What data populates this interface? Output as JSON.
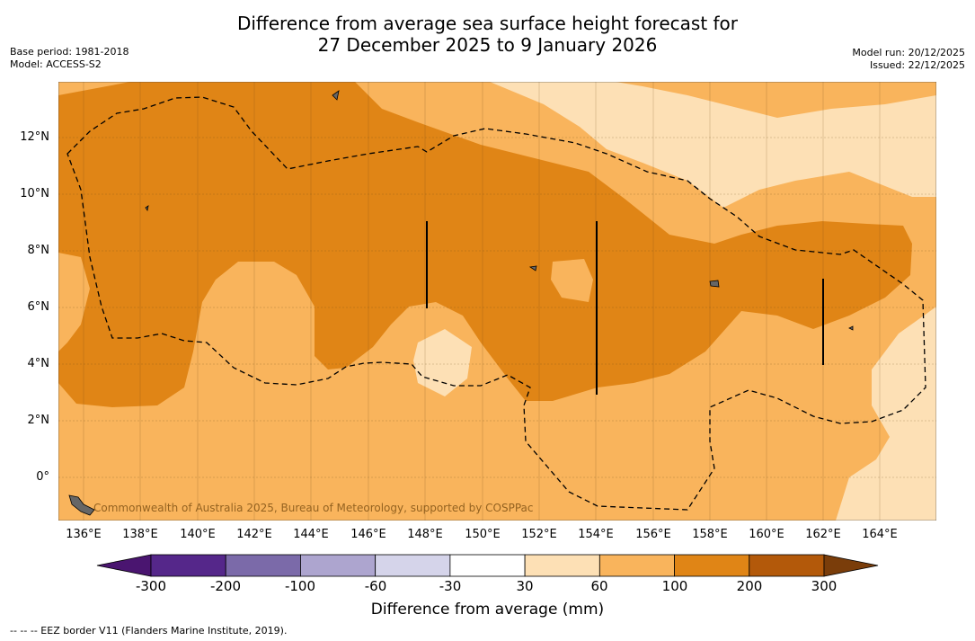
{
  "title": {
    "line1": "Difference from average sea surface height forecast for",
    "line2": "27 December 2025 to 9 January 2026"
  },
  "meta": {
    "base_period": "Base period: 1981-2018",
    "model": "Model: ACCESS-S2",
    "model_run": "Model run: 20/12/2025",
    "issued": "Issued: 22/12/2025"
  },
  "map": {
    "lat_labels": [
      "12°N",
      "10°N",
      "8°N",
      "6°N",
      "4°N",
      "2°N",
      "0°"
    ],
    "lon_labels": [
      "136°E",
      "138°E",
      "140°E",
      "142°E",
      "144°E",
      "146°E",
      "148°E",
      "150°E",
      "152°E",
      "154°E",
      "156°E",
      "158°E",
      "160°E",
      "162°E",
      "164°E"
    ],
    "copyright": "Commonwealth of Australia 2025, Bureau of Meteorology, supported by COSPPac"
  },
  "colorbar": {
    "ticks": [
      "-300",
      "-200",
      "-100",
      "-60",
      "-30",
      "30",
      "60",
      "100",
      "200",
      "300"
    ],
    "colors": [
      "#4a1570",
      "#55278a",
      "#7b6aa9",
      "#ada5cf",
      "#d5d4ea",
      "#ffffff",
      "#fde0b5",
      "#f9b45c",
      "#e08516",
      "#b3590a",
      "#7a3d0a"
    ],
    "label": "Difference from average (mm)"
  },
  "legend": {
    "eez_line": "--  --  -- EEZ border V11 (Flanders Marine Institute, 2019)."
  }
}
